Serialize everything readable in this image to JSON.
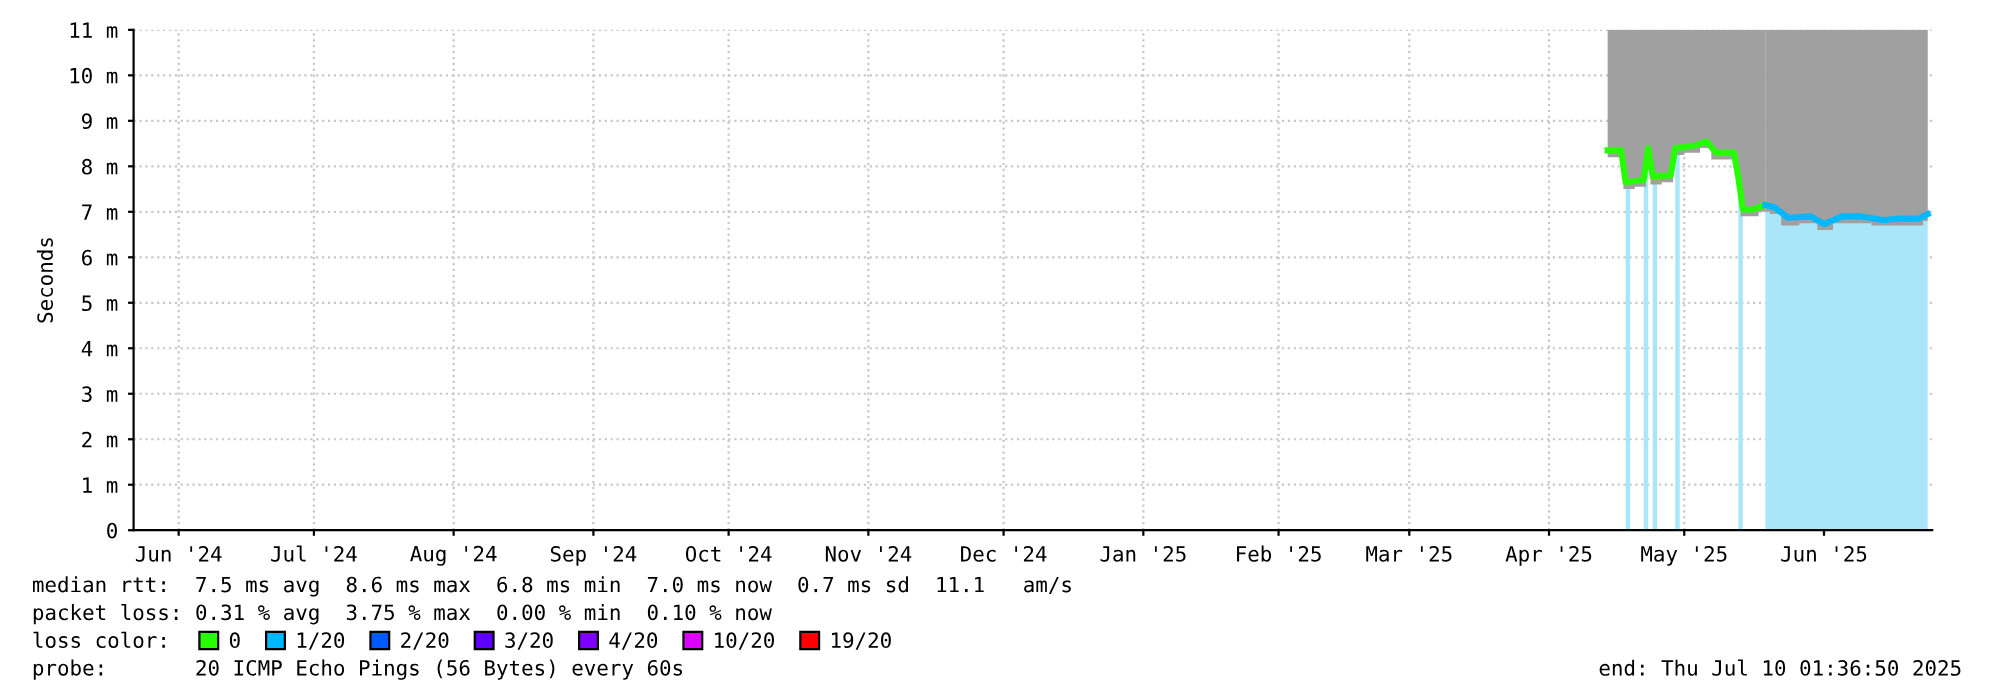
{
  "chart_data": {
    "type": "line",
    "ylabel": "Seconds",
    "xlim": [
      "2024-06-06",
      "2025-07-10"
    ],
    "xticks": [
      {
        "value": "2024-06-16",
        "label": "Jun '24"
      },
      {
        "value": "2024-07-16",
        "label": "Jul '24"
      },
      {
        "value": "2024-08-16",
        "label": "Aug '24"
      },
      {
        "value": "2024-09-16",
        "label": "Sep '24"
      },
      {
        "value": "2024-10-16",
        "label": "Oct '24"
      },
      {
        "value": "2024-11-16",
        "label": "Nov '24"
      },
      {
        "value": "2024-12-16",
        "label": "Dec '24"
      },
      {
        "value": "2025-01-16",
        "label": "Jan '25"
      },
      {
        "value": "2025-02-15",
        "label": "Feb '25"
      },
      {
        "value": "2025-03-16",
        "label": "Mar '25"
      },
      {
        "value": "2025-04-16",
        "label": "Apr '25"
      },
      {
        "value": "2025-05-16",
        "label": "May '25"
      },
      {
        "value": "2025-06-16",
        "label": "Jun '25"
      }
    ],
    "ylim": [
      0,
      11
    ],
    "yticks": [
      0,
      {
        "value": 1,
        "label": "1 m"
      },
      {
        "value": 2,
        "label": "2 m"
      },
      {
        "value": 3,
        "label": "3 m"
      },
      {
        "value": 4,
        "label": "4 m"
      },
      {
        "value": 5,
        "label": "5 m"
      },
      {
        "value": 6,
        "label": "6 m"
      },
      {
        "value": 7,
        "label": "7 m"
      },
      {
        "value": 8,
        "label": "8 m"
      },
      {
        "value": 9,
        "label": "9 m"
      },
      {
        "value": 10,
        "label": "10 m"
      },
      {
        "value": 11,
        "label": "11 m"
      }
    ],
    "grid": true,
    "legend": "bottom left",
    "legend_title": "loss color:",
    "series": [
      {
        "name": "0",
        "color": "#26ff00",
        "x": [
          "2025-04-29",
          "2025-05-02",
          "2025-05-03",
          "2025-05-07",
          "2025-05-08",
          "2025-05-09",
          "2025-05-13",
          "2025-05-14",
          "2025-05-18",
          "2025-05-21",
          "2025-05-23",
          "2025-05-27",
          "2025-05-28",
          "2025-05-29",
          "2025-05-31",
          "2025-06-03"
        ],
        "values": [
          8.35,
          8.35,
          7.65,
          7.7,
          8.4,
          7.78,
          7.8,
          8.4,
          8.45,
          8.55,
          8.3,
          8.3,
          7.75,
          7.05,
          7.05,
          7.15
        ],
        "lower": [
          8.2,
          8.2,
          7.5,
          7.55,
          8.25,
          7.6,
          7.65,
          8.25,
          8.3,
          8.4,
          8.15,
          8.15,
          7.6,
          6.9,
          6.9,
          7.0
        ],
        "upper": [
          11,
          11,
          11,
          11,
          11,
          11,
          11,
          11,
          11,
          11,
          11,
          11,
          11,
          11,
          11,
          11
        ]
      },
      {
        "name": "1/20",
        "color": "#00b8ff",
        "x": [
          "2025-06-03",
          "2025-06-05",
          "2025-06-08",
          "2025-06-13",
          "2025-06-16",
          "2025-06-20",
          "2025-06-24",
          "2025-06-29",
          "2025-07-03",
          "2025-07-07",
          "2025-07-09"
        ],
        "values": [
          7.15,
          7.1,
          6.87,
          6.9,
          6.73,
          6.9,
          6.9,
          6.82,
          6.85,
          6.85,
          6.95
        ],
        "lower": [
          7.0,
          6.95,
          6.7,
          6.75,
          6.6,
          6.75,
          6.75,
          6.7,
          6.7,
          6.7,
          6.8
        ],
        "upper": [
          11,
          11,
          11,
          11,
          11,
          11,
          11,
          11,
          11,
          11,
          11
        ]
      },
      {
        "name": "2/20",
        "color": "#0059ff"
      },
      {
        "name": "3/20",
        "color": "#5e00ff"
      },
      {
        "name": "4/20",
        "color": "#7e00ff"
      },
      {
        "name": "10/20",
        "color": "#dd00ff"
      },
      {
        "name": "19/20",
        "color": "#ff0000"
      }
    ],
    "bands": [
      {
        "axis": "x",
        "from": "2025-05-03",
        "to": "2025-05-04",
        "color": "#aae6fa"
      },
      {
        "axis": "x",
        "from": "2025-05-07",
        "to": "2025-05-08",
        "color": "#aae6fa"
      },
      {
        "axis": "x",
        "from": "2025-05-09",
        "to": "2025-05-10",
        "color": "#aae6fa"
      },
      {
        "axis": "x",
        "from": "2025-05-14",
        "to": "2025-05-15",
        "color": "#aae6fa"
      },
      {
        "axis": "x",
        "from": "2025-05-28",
        "to": "2025-05-29",
        "color": "#aae6fa"
      },
      {
        "axis": "x",
        "from": "2025-06-03",
        "to": "2025-07-09",
        "color": "#aae6fa"
      }
    ],
    "annotations": [
      "median rtt:  7.5 ms avg  8.6 ms max  6.8 ms min  7.0 ms now  0.7 ms sd  11.1   am/s",
      "packet loss: 0.31 % avg  3.75 % max  0.00 % min  0.10 % now",
      "probe:       20 ICMP Echo Pings (56 Bytes) every 60s",
      "end: Thu Jul 10 01:36:50 2025"
    ]
  }
}
